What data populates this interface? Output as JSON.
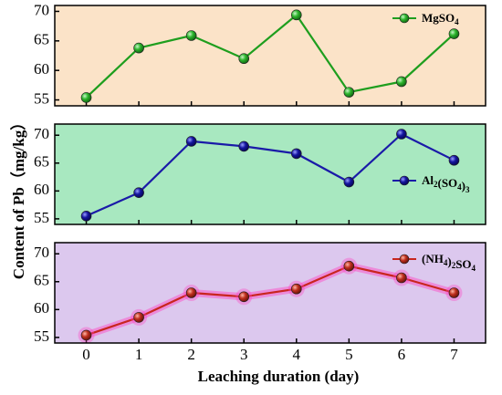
{
  "chart_data": [
    {
      "type": "line",
      "x": [
        0,
        1,
        2,
        3,
        4,
        5,
        6,
        7
      ],
      "series": [
        {
          "name": "MgSO4",
          "name_parts": [
            [
              "MgSO",
              false
            ],
            [
              "4",
              true
            ]
          ],
          "values": [
            55.4,
            63.8,
            65.9,
            62.0,
            69.4,
            56.3,
            58.1,
            66.2
          ]
        }
      ],
      "ylim": [
        54,
        71
      ],
      "yticks": [
        55,
        60,
        65,
        70
      ],
      "background": "#fbe3c8",
      "line_color": "#1e9e1e",
      "marker_color": "#2db52d",
      "legend": "top-right"
    },
    {
      "type": "line",
      "x": [
        0,
        1,
        2,
        3,
        4,
        5,
        6,
        7
      ],
      "series": [
        {
          "name": "Al2(SO4)3",
          "name_parts": [
            [
              "Al",
              false
            ],
            [
              "2",
              true
            ],
            [
              "(SO",
              false
            ],
            [
              "4",
              true
            ],
            [
              ")",
              false
            ],
            [
              "3",
              true
            ]
          ],
          "values": [
            55.5,
            59.7,
            68.9,
            68.0,
            66.7,
            61.6,
            70.2,
            65.5
          ]
        }
      ],
      "ylim": [
        54,
        72
      ],
      "yticks": [
        55,
        60,
        65,
        70
      ],
      "background": "#a8e8c0",
      "line_color": "#1a1aa8",
      "marker_color": "#1515a0",
      "legend": "right"
    },
    {
      "type": "line",
      "x": [
        0,
        1,
        2,
        3,
        4,
        5,
        6,
        7
      ],
      "series": [
        {
          "name": "(NH4)2SO4",
          "name_parts": [
            [
              "(NH",
              false
            ],
            [
              "4",
              true
            ],
            [
              ")",
              false
            ],
            [
              "2",
              true
            ],
            [
              "SO",
              false
            ],
            [
              "4",
              true
            ]
          ],
          "values": [
            55.4,
            58.6,
            63.0,
            62.3,
            63.7,
            67.8,
            65.7,
            63.0
          ]
        }
      ],
      "ylim": [
        54,
        72
      ],
      "yticks": [
        55,
        60,
        65,
        70
      ],
      "background": "#dcc8ee",
      "line_color": "#c8261e",
      "marker_color": "#c0301e",
      "glow_color": "#ff40c0",
      "legend": "top-right"
    }
  ],
  "shared_axes": {
    "xlabel": "Leaching duration (day)",
    "ylabel": "Content of Pb（mg/kg）",
    "xticks": [
      0,
      1,
      2,
      3,
      4,
      5,
      6,
      7
    ],
    "xlim": [
      -0.6,
      7.6
    ]
  }
}
